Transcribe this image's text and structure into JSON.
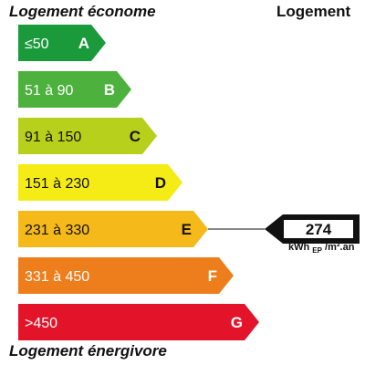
{
  "header": {
    "title_top": "Logement économe",
    "title_right": "Logement",
    "title_bottom": "Logement énergivore"
  },
  "classes": [
    {
      "letter": "A",
      "range": "≤50",
      "color": "#1a9a3a",
      "light": true
    },
    {
      "letter": "B",
      "range": "51 à 90",
      "color": "#4cb13d",
      "light": true
    },
    {
      "letter": "C",
      "range": "91 à 150",
      "color": "#b7d01c",
      "light": false
    },
    {
      "letter": "D",
      "range": "151 à 230",
      "color": "#f4ec14",
      "light": false
    },
    {
      "letter": "E",
      "range": "231 à 330",
      "color": "#f6b91a",
      "light": false
    },
    {
      "letter": "F",
      "range": "331 à 450",
      "color": "#ee7d1c",
      "light": true
    },
    {
      "letter": "G",
      "range": ">450",
      "color": "#e3142a",
      "light": true
    }
  ],
  "indicator": {
    "value": "274",
    "class": "E",
    "unit_main": "kWh",
    "unit_sub": "EP",
    "unit_rest": "/m².an"
  }
}
